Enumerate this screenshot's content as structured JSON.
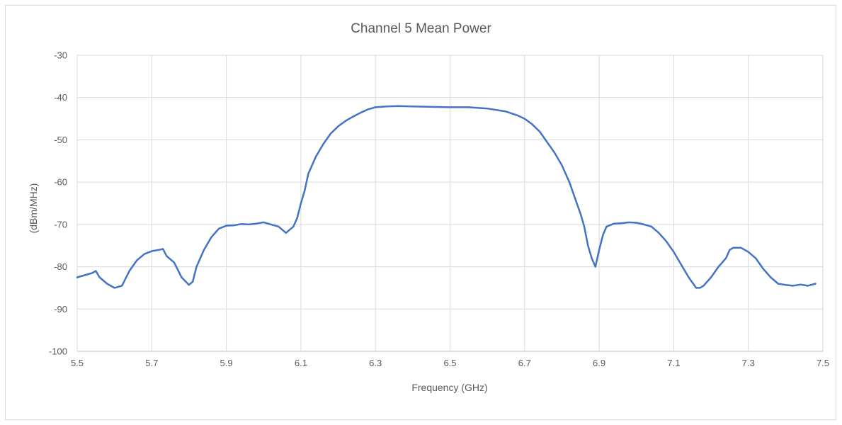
{
  "chart_data": {
    "type": "line",
    "title": "Channel 5 Mean Power",
    "xlabel": "Frequency (GHz)",
    "ylabel": "(dBm/MHz)",
    "xlim": [
      5.5,
      7.5
    ],
    "ylim": [
      -100,
      -30
    ],
    "xticks": [
      "5.5",
      "5.7",
      "5.9",
      "6.1",
      "6.3",
      "6.5",
      "6.7",
      "6.9",
      "7.1",
      "7.3",
      "7.5"
    ],
    "yticks": [
      "-30",
      "-40",
      "-50",
      "-60",
      "-70",
      "-80",
      "-90",
      "-100"
    ],
    "grid": true,
    "legend": "none",
    "series": [
      {
        "color": "#4472c4",
        "x": [
          5.5,
          5.52,
          5.54,
          5.55,
          5.56,
          5.58,
          5.6,
          5.62,
          5.64,
          5.66,
          5.68,
          5.7,
          5.72,
          5.73,
          5.74,
          5.76,
          5.78,
          5.8,
          5.81,
          5.82,
          5.84,
          5.86,
          5.88,
          5.9,
          5.92,
          5.94,
          5.96,
          5.98,
          6.0,
          6.02,
          6.04,
          6.06,
          6.08,
          6.09,
          6.1,
          6.11,
          6.12,
          6.14,
          6.16,
          6.18,
          6.2,
          6.22,
          6.24,
          6.26,
          6.28,
          6.3,
          6.33,
          6.36,
          6.4,
          6.45,
          6.5,
          6.55,
          6.6,
          6.65,
          6.68,
          6.7,
          6.72,
          6.74,
          6.76,
          6.78,
          6.8,
          6.82,
          6.84,
          6.85,
          6.86,
          6.87,
          6.88,
          6.89,
          6.9,
          6.91,
          6.92,
          6.94,
          6.96,
          6.98,
          7.0,
          7.02,
          7.04,
          7.06,
          7.08,
          7.1,
          7.12,
          7.14,
          7.16,
          7.17,
          7.18,
          7.2,
          7.22,
          7.24,
          7.25,
          7.26,
          7.28,
          7.3,
          7.32,
          7.34,
          7.36,
          7.38,
          7.4,
          7.42,
          7.44,
          7.46,
          7.48
        ],
        "y": [
          -82.5,
          -82,
          -81.5,
          -81,
          -82.5,
          -84,
          -85,
          -84.5,
          -81,
          -78.5,
          -77,
          -76.3,
          -76,
          -75.8,
          -77.5,
          -79,
          -82.5,
          -84.3,
          -83.5,
          -80,
          -76,
          -73,
          -71,
          -70.3,
          -70.2,
          -69.9,
          -70,
          -69.8,
          -69.5,
          -70,
          -70.5,
          -72,
          -70.5,
          -68.5,
          -65,
          -62,
          -58,
          -54,
          -51,
          -48.5,
          -46.8,
          -45.5,
          -44.5,
          -43.6,
          -42.8,
          -42.3,
          -42.1,
          -42,
          -42.1,
          -42.2,
          -42.3,
          -42.3,
          -42.6,
          -43.3,
          -44.2,
          -45,
          -46.3,
          -48,
          -50.5,
          -53,
          -56,
          -60,
          -65,
          -67.5,
          -70.5,
          -75,
          -78,
          -80,
          -76,
          -72.5,
          -70.5,
          -69.8,
          -69.7,
          -69.5,
          -69.6,
          -70,
          -70.5,
          -72,
          -74,
          -76.5,
          -79.5,
          -82.5,
          -85,
          -85,
          -84.5,
          -82.5,
          -80,
          -78,
          -76,
          -75.5,
          -75.5,
          -76.5,
          -78,
          -80.5,
          -82.5,
          -84,
          -84.3,
          -84.5,
          -84.2,
          -84.5,
          -84
        ]
      }
    ]
  }
}
